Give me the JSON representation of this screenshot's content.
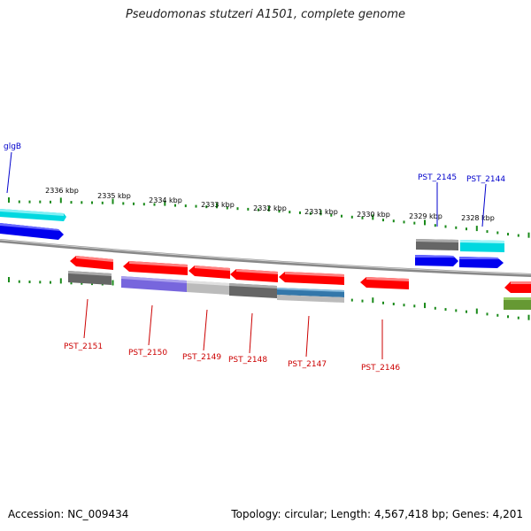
{
  "title": "Pseudomonas stutzeri A1501, complete genome",
  "footer": {
    "accession": "Accession: NC_009434",
    "summary": "Topology: circular; Length: 4,567,418 bp; Genes: 4,201"
  },
  "scale_labels": [
    "2336 kbp",
    "2335 kbp",
    "2334 kbp",
    "2333 kbp",
    "2332 kbp",
    "2331 kbp",
    "2330 kbp",
    "2329 kbp",
    "2328 kbp"
  ],
  "forward_gene_labels": [
    "glgB",
    "PST_2145",
    "PST_2144"
  ],
  "reverse_gene_labels": [
    "PST_2151",
    "PST_2150",
    "PST_2149",
    "PST_2148",
    "PST_2147",
    "PST_2146"
  ],
  "colors": {
    "forward_label": "#0000cc",
    "reverse_label": "#cc0000",
    "tick": "#1a8a1a",
    "backbone": "#888888",
    "red_gene": "#ff0000",
    "blue_gene": "#0000ff",
    "cyan_gene": "#00d8e0",
    "gray_gene": "#666666",
    "purple_gene": "#7766dd",
    "lightgray_gene": "#bbbbbb",
    "steelblue_gene": "#3377aa",
    "olive_gene": "#669933"
  }
}
